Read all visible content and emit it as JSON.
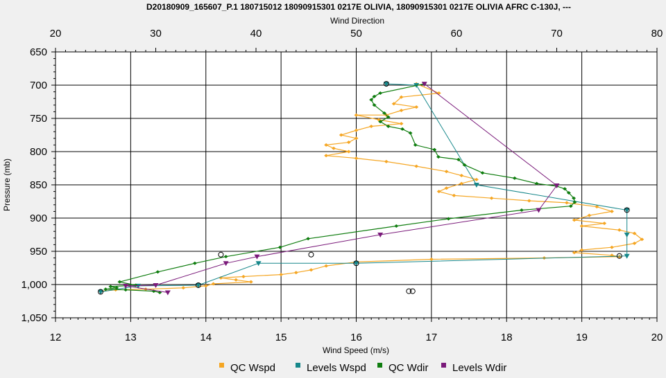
{
  "chart_data": {
    "type": "line",
    "title": "D20180909_165607_P.1 180715012 18090915301 0217E OLIVIA, 18090915301 0217E OLIVIA AFRC C-130J, ---",
    "top_axis": {
      "label": "Wind Direction",
      "range": [
        20,
        80
      ],
      "ticks": [
        "20",
        "30",
        "40",
        "50",
        "60",
        "70",
        "80"
      ]
    },
    "bottom_axis": {
      "label": "Wind Speed (m/s)",
      "range": [
        12,
        20
      ],
      "ticks": [
        "12",
        "13",
        "14",
        "15",
        "16",
        "17",
        "18",
        "19",
        "20"
      ]
    },
    "y_axis": {
      "label": "Pressure (mb)",
      "range": [
        650,
        1050
      ],
      "inverted": true,
      "ticks": [
        "650",
        "700",
        "750",
        "800",
        "850",
        "900",
        "950",
        "1,000",
        "1,050"
      ]
    },
    "grid": true,
    "legend_position": "bottom",
    "series": [
      {
        "name": "QC Wspd",
        "color": "#f5a623",
        "x_axis": "bottom",
        "points": [
          [
            16.8,
            698
          ],
          [
            17.1,
            712
          ],
          [
            16.6,
            718
          ],
          [
            16.5,
            728
          ],
          [
            16.8,
            733
          ],
          [
            16.6,
            738
          ],
          [
            16.4,
            745
          ],
          [
            16.0,
            745
          ],
          [
            16.3,
            752
          ],
          [
            16.6,
            758
          ],
          [
            16.2,
            762
          ],
          [
            16.0,
            768
          ],
          [
            15.8,
            775
          ],
          [
            16.0,
            780
          ],
          [
            15.9,
            786
          ],
          [
            15.6,
            790
          ],
          [
            15.7,
            795
          ],
          [
            15.9,
            800
          ],
          [
            15.6,
            806
          ],
          [
            16.0,
            810
          ],
          [
            16.4,
            815
          ],
          [
            16.8,
            822
          ],
          [
            17.2,
            830
          ],
          [
            17.4,
            836
          ],
          [
            17.6,
            842
          ],
          [
            17.4,
            848
          ],
          [
            17.2,
            855
          ],
          [
            17.1,
            860
          ],
          [
            17.3,
            866
          ],
          [
            17.8,
            870
          ],
          [
            18.3,
            874
          ],
          [
            18.8,
            877
          ],
          [
            19.2,
            883
          ],
          [
            19.4,
            890
          ],
          [
            19.1,
            896
          ],
          [
            18.9,
            903
          ],
          [
            19.3,
            908
          ],
          [
            19.0,
            912
          ],
          [
            19.5,
            918
          ],
          [
            19.7,
            923
          ],
          [
            19.8,
            932
          ],
          [
            19.7,
            938
          ],
          [
            19.4,
            944
          ],
          [
            19.0,
            948
          ],
          [
            18.9,
            952
          ],
          [
            19.4,
            956
          ],
          [
            19.5,
            958
          ],
          [
            18.5,
            960
          ],
          [
            17.0,
            962
          ],
          [
            16.0,
            966
          ],
          [
            15.6,
            972
          ],
          [
            15.4,
            978
          ],
          [
            15.2,
            982
          ],
          [
            15.0,
            985
          ],
          [
            14.5,
            988
          ],
          [
            14.2,
            990
          ],
          [
            14.4,
            993
          ],
          [
            14.6,
            996
          ],
          [
            14.1,
            999
          ],
          [
            14.0,
            1002
          ],
          [
            13.7,
            1005
          ],
          [
            13.2,
            1007
          ],
          [
            12.8,
            1008
          ],
          [
            12.6,
            1010
          ]
        ]
      },
      {
        "name": "Levels Wspd",
        "color": "#16878a",
        "x_axis": "bottom",
        "points": [
          [
            16.4,
            698
          ],
          [
            16.8,
            700
          ],
          [
            17.6,
            850
          ],
          [
            19.6,
            888
          ],
          [
            19.6,
            925
          ],
          [
            19.6,
            957
          ],
          [
            16.0,
            968
          ],
          [
            14.7,
            968
          ],
          [
            13.9,
            1001
          ],
          [
            13.1,
            1002
          ],
          [
            12.6,
            1011
          ]
        ]
      },
      {
        "name": "QC Wdir",
        "color": "#0f7d0f",
        "x_axis": "top",
        "points": [
          [
            56.8,
            698
          ],
          [
            52.4,
            712
          ],
          [
            51.8,
            717
          ],
          [
            51.5,
            722
          ],
          [
            51.8,
            730
          ],
          [
            52.8,
            742
          ],
          [
            53.2,
            748
          ],
          [
            52.4,
            755
          ],
          [
            53.2,
            762
          ],
          [
            54.6,
            766
          ],
          [
            55.4,
            772
          ],
          [
            55.9,
            790
          ],
          [
            57.8,
            797
          ],
          [
            58.2,
            808
          ],
          [
            60.2,
            812
          ],
          [
            60.8,
            820
          ],
          [
            62.6,
            832
          ],
          [
            65.8,
            840
          ],
          [
            68.0,
            848
          ],
          [
            70.0,
            852
          ],
          [
            70.8,
            856
          ],
          [
            71.2,
            862
          ],
          [
            71.7,
            870
          ],
          [
            71.8,
            876
          ],
          [
            71.4,
            882
          ],
          [
            66.5,
            888
          ],
          [
            59.2,
            901
          ],
          [
            54.0,
            912
          ],
          [
            45.2,
            931
          ],
          [
            42.4,
            944
          ],
          [
            37.0,
            958
          ],
          [
            33.9,
            968
          ],
          [
            30.2,
            981
          ],
          [
            26.4,
            996
          ],
          [
            28.0,
            1001
          ],
          [
            25.5,
            1003
          ],
          [
            26.1,
            1005
          ],
          [
            25.0,
            1007
          ],
          [
            27.0,
            1008
          ],
          [
            29.8,
            1010
          ],
          [
            30.4,
            1012
          ]
        ]
      },
      {
        "name": "Levels Wdir",
        "color": "#7a1a7a",
        "x_axis": "top",
        "points": [
          [
            56.8,
            698
          ],
          [
            70.0,
            851
          ],
          [
            68.2,
            888
          ],
          [
            52.4,
            925
          ],
          [
            40.1,
            958
          ],
          [
            37.0,
            968
          ],
          [
            30.0,
            1001
          ],
          [
            27.0,
            1002
          ],
          [
            31.2,
            1012
          ]
        ]
      }
    ],
    "markers": [
      {
        "name": "QC Wspd",
        "color": "#f5a623",
        "shape": "square"
      },
      {
        "name": "Levels Wspd",
        "color": "#16878a",
        "shape": "square"
      },
      {
        "name": "QC Wdir",
        "color": "#0f7d0f",
        "shape": "square"
      },
      {
        "name": "Levels Wdir",
        "color": "#7a1a7a",
        "shape": "square"
      }
    ],
    "open_circles": [
      [
        14.2,
        955
      ],
      [
        15.4,
        955
      ],
      [
        16.7,
        1010
      ],
      [
        16.75,
        1010
      ],
      [
        13.9,
        1001
      ],
      [
        16.4,
        698
      ],
      [
        19.6,
        888
      ],
      [
        19.5,
        957
      ],
      [
        16.0,
        968
      ],
      [
        12.6,
        1011
      ]
    ]
  }
}
